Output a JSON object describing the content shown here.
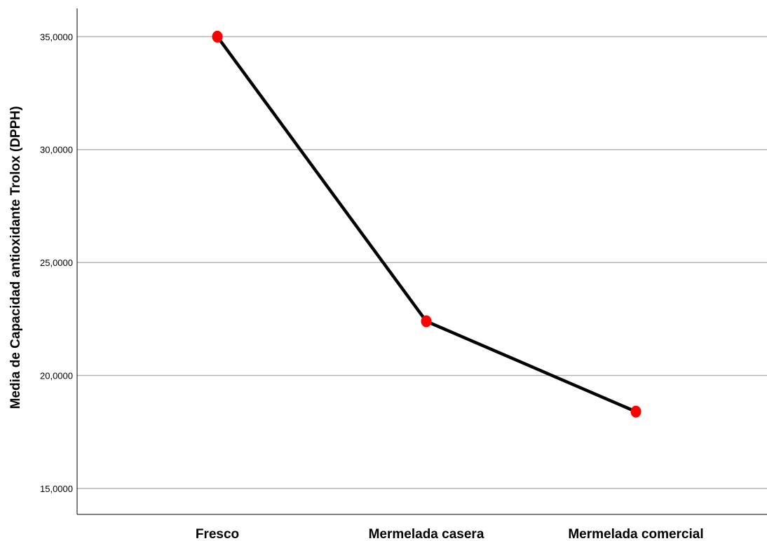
{
  "chart_data": {
    "type": "line",
    "title": "",
    "xlabel": "",
    "ylabel": "Media de Capacidad antioxidante Trolox (DPPH)",
    "categories": [
      "Fresco",
      "Mermelada casera",
      "Mermelada comercial"
    ],
    "series": [
      {
        "values": [
          35.0,
          22.4,
          18.4
        ]
      }
    ],
    "y_ticks": [
      15,
      20,
      25,
      30,
      35
    ],
    "y_tick_labels": [
      "15,0000",
      "20,0000",
      "25,0000",
      "30,0000",
      "35,0000"
    ],
    "ylim": [
      13.85,
      36.25
    ],
    "grid": true,
    "legend": "none",
    "colors": {
      "line": "#000000",
      "marker": "#ff0000",
      "grid": "#b4b4b4",
      "axis": "#000000"
    }
  }
}
